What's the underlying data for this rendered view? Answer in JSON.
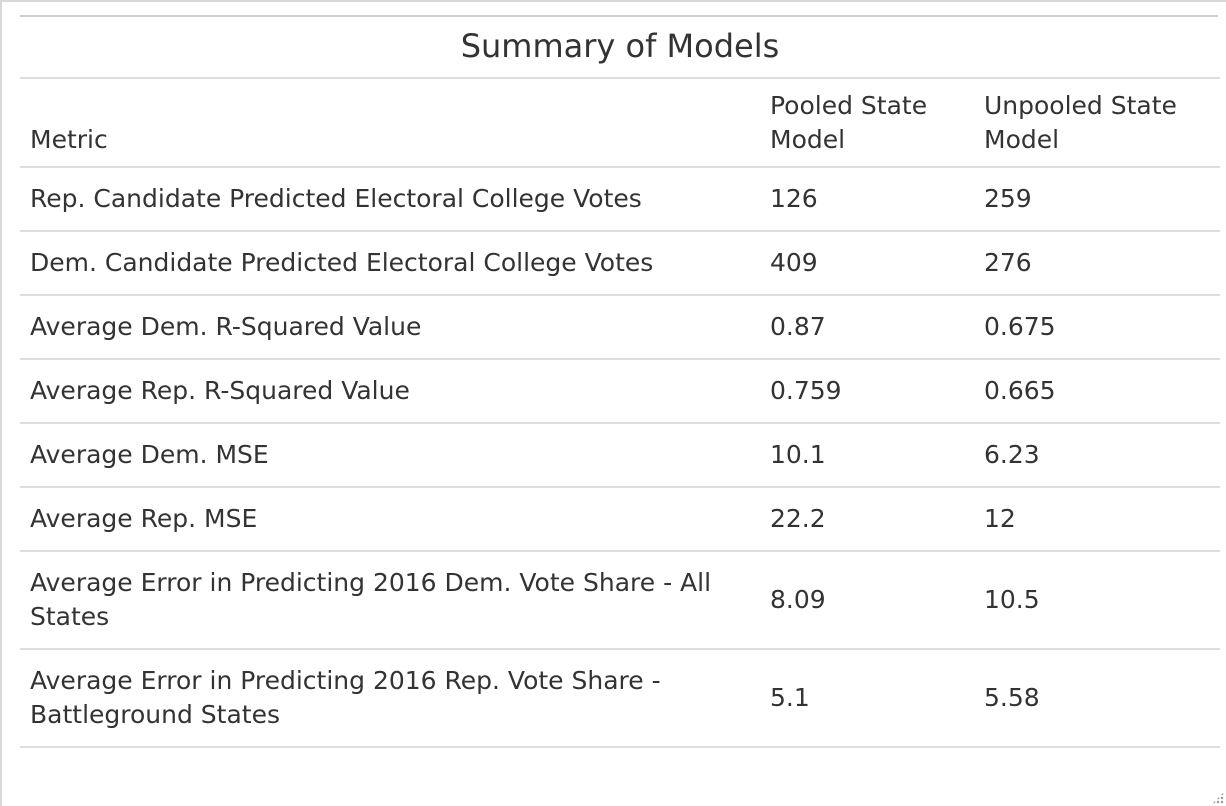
{
  "table": {
    "title": "Summary of Models",
    "headers": {
      "metric": "Metric",
      "pooled": "Pooled State Model",
      "unpooled": "Unpooled State Model"
    },
    "rows": [
      {
        "metric": "Rep. Candidate Predicted Electoral College Votes",
        "pooled": "126",
        "unpooled": "259"
      },
      {
        "metric": "Dem. Candidate Predicted Electoral College Votes",
        "pooled": "409",
        "unpooled": "276"
      },
      {
        "metric": "Average Dem. R-Squared Value",
        "pooled": "0.87",
        "unpooled": "0.675"
      },
      {
        "metric": "Average Rep. R-Squared Value",
        "pooled": "0.759",
        "unpooled": "0.665"
      },
      {
        "metric": "Average Dem. MSE",
        "pooled": "10.1",
        "unpooled": "6.23"
      },
      {
        "metric": "Average Rep. MSE",
        "pooled": "22.2",
        "unpooled": "12"
      },
      {
        "metric": "Average Error in Predicting 2016 Dem. Vote Share - All States",
        "pooled": "8.09",
        "unpooled": "10.5"
      },
      {
        "metric": "Average Error in Predicting 2016 Rep. Vote Share - Battleground States",
        "pooled": "5.1",
        "unpooled": "5.58"
      }
    ]
  }
}
